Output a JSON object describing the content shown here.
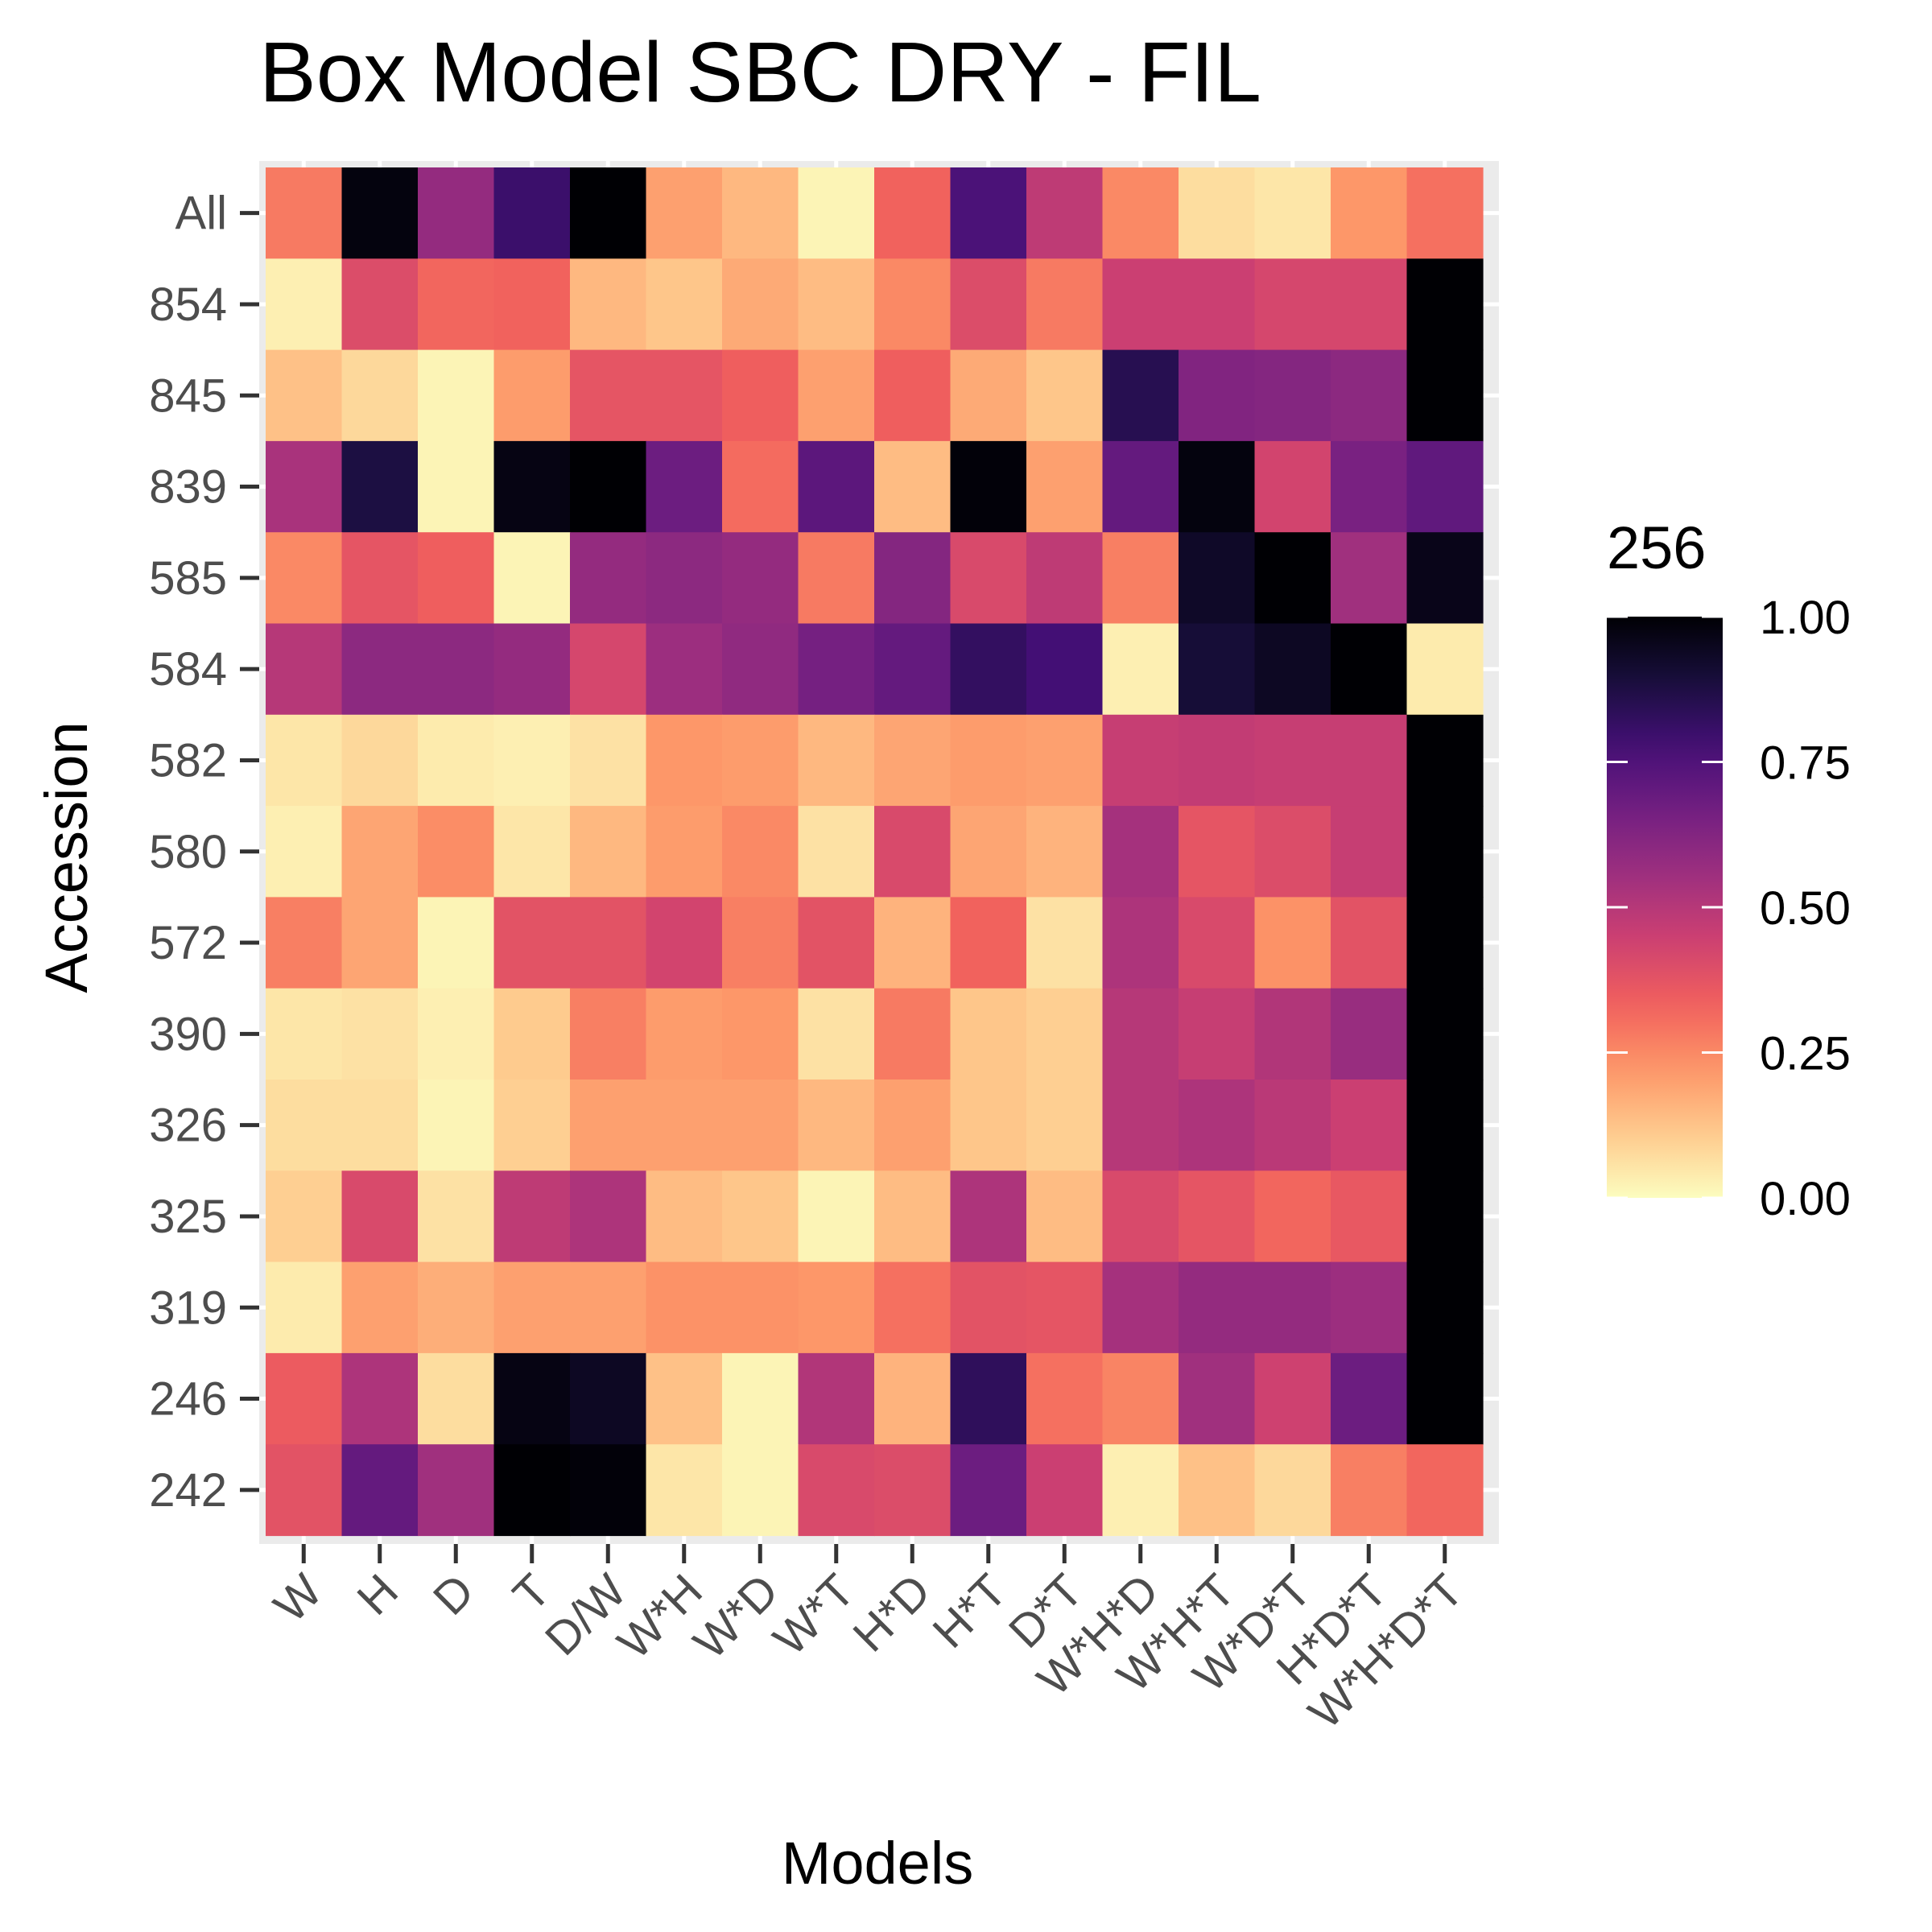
{
  "chart_data": {
    "type": "heatmap",
    "title": "Box Model SBC DRY - FIL",
    "xlabel": "Models",
    "ylabel": "Accession",
    "x_categories": [
      "W",
      "H",
      "D",
      "T",
      "D/W",
      "W*H",
      "W*D",
      "W*T",
      "H*D",
      "H*T",
      "D*T",
      "W*H*D",
      "W*H*T",
      "W*D*T",
      "H*D*T",
      "W*H*D*T"
    ],
    "y_categories": [
      "All",
      "854",
      "845",
      "839",
      "585",
      "584",
      "582",
      "580",
      "572",
      "390",
      "326",
      "325",
      "319",
      "246",
      "242"
    ],
    "values": [
      [
        0.28,
        0.98,
        0.58,
        0.8,
        1.0,
        0.2,
        0.15,
        0.02,
        0.33,
        0.76,
        0.48,
        0.25,
        0.07,
        0.05,
        0.22,
        0.3
      ],
      [
        0.03,
        0.4,
        0.32,
        0.33,
        0.15,
        0.12,
        0.18,
        0.14,
        0.25,
        0.4,
        0.28,
        0.45,
        0.45,
        0.42,
        0.42,
        1.0
      ],
      [
        0.13,
        0.08,
        0.02,
        0.21,
        0.37,
        0.37,
        0.34,
        0.2,
        0.34,
        0.18,
        0.12,
        0.85,
        0.63,
        0.62,
        0.6,
        1.0
      ],
      [
        0.53,
        0.88,
        0.02,
        0.97,
        1.0,
        0.68,
        0.31,
        0.72,
        0.14,
        0.99,
        0.2,
        0.7,
        0.98,
        0.43,
        0.65,
        0.71
      ],
      [
        0.25,
        0.37,
        0.34,
        0.02,
        0.58,
        0.6,
        0.58,
        0.28,
        0.62,
        0.41,
        0.48,
        0.27,
        0.93,
        1.0,
        0.55,
        0.96
      ],
      [
        0.5,
        0.6,
        0.6,
        0.58,
        0.42,
        0.56,
        0.59,
        0.66,
        0.7,
        0.82,
        0.78,
        0.03,
        0.9,
        0.94,
        1.0,
        0.04
      ],
      [
        0.05,
        0.08,
        0.04,
        0.03,
        0.06,
        0.22,
        0.21,
        0.15,
        0.19,
        0.21,
        0.2,
        0.46,
        0.47,
        0.46,
        0.46,
        1.0
      ],
      [
        0.03,
        0.19,
        0.24,
        0.05,
        0.15,
        0.21,
        0.25,
        0.06,
        0.41,
        0.19,
        0.16,
        0.54,
        0.37,
        0.4,
        0.46,
        1.0
      ],
      [
        0.27,
        0.19,
        0.02,
        0.38,
        0.38,
        0.43,
        0.27,
        0.38,
        0.16,
        0.33,
        0.06,
        0.52,
        0.41,
        0.23,
        0.38,
        1.0
      ],
      [
        0.05,
        0.06,
        0.03,
        0.11,
        0.27,
        0.21,
        0.22,
        0.06,
        0.28,
        0.12,
        0.1,
        0.5,
        0.46,
        0.51,
        0.57,
        1.0
      ],
      [
        0.07,
        0.07,
        0.02,
        0.1,
        0.2,
        0.2,
        0.2,
        0.15,
        0.2,
        0.12,
        0.1,
        0.5,
        0.52,
        0.49,
        0.45,
        1.0
      ],
      [
        0.1,
        0.41,
        0.06,
        0.48,
        0.52,
        0.14,
        0.12,
        0.02,
        0.14,
        0.52,
        0.14,
        0.41,
        0.37,
        0.32,
        0.36,
        1.0
      ],
      [
        0.04,
        0.2,
        0.17,
        0.2,
        0.2,
        0.23,
        0.23,
        0.22,
        0.3,
        0.38,
        0.37,
        0.54,
        0.58,
        0.58,
        0.56,
        1.0
      ],
      [
        0.35,
        0.52,
        0.07,
        0.97,
        0.94,
        0.13,
        0.02,
        0.51,
        0.16,
        0.83,
        0.3,
        0.26,
        0.55,
        0.44,
        0.68,
        1.0
      ],
      [
        0.38,
        0.7,
        0.55,
        1.0,
        0.99,
        0.05,
        0.02,
        0.41,
        0.4,
        0.68,
        0.45,
        0.03,
        0.13,
        0.08,
        0.27,
        0.32
      ]
    ],
    "scale": {
      "name": "magma",
      "reversed": true,
      "limits": [
        0,
        1
      ]
    },
    "legend": {
      "title": "256",
      "position": "right",
      "breaks": [
        "1.00",
        "0.75",
        "0.50",
        "0.25",
        "0.00"
      ]
    },
    "grid": true,
    "panel_background": "#ebebeb",
    "gridline_color": "#ffffff"
  }
}
